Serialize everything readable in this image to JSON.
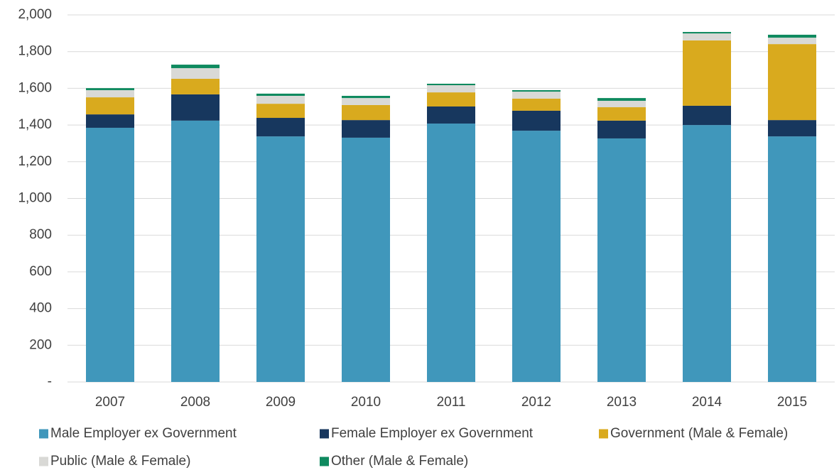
{
  "chart_data": {
    "type": "stacked_bar",
    "categories": [
      "2007",
      "2008",
      "2009",
      "2010",
      "2011",
      "2012",
      "2013",
      "2014",
      "2015"
    ],
    "series": [
      {
        "name": "Male Employer ex Government",
        "color": "#4097bb",
        "values": [
          1385,
          1424,
          1338,
          1331,
          1408,
          1369,
          1327,
          1400,
          1338
        ]
      },
      {
        "name": "Female Employer ex Government",
        "color": "#17375e",
        "values": [
          73,
          143,
          101,
          96,
          93,
          109,
          97,
          105,
          89
        ]
      },
      {
        "name": "Government (Male & Female)",
        "color": "#d9aa1e",
        "values": [
          93,
          85,
          77,
          82,
          77,
          66,
          73,
          356,
          414
        ]
      },
      {
        "name": "Public (Male & Female)",
        "color": "#d9d9d6",
        "values": [
          39,
          58,
          43,
          38,
          39,
          38,
          35,
          38,
          35
        ]
      },
      {
        "name": "Other (Male & Female)",
        "color": "#0f8a5f",
        "values": [
          11,
          19,
          12,
          12,
          8,
          8,
          15,
          8,
          16
        ]
      }
    ],
    "ylim": [
      0,
      2000
    ],
    "yticks": [
      {
        "value": 0,
        "label": "-"
      },
      200,
      400,
      600,
      800,
      {
        "value": 1000,
        "label": "1,000"
      },
      {
        "value": 1200,
        "label": "1,200"
      },
      {
        "value": 1400,
        "label": "1,400"
      },
      {
        "value": 1600,
        "label": "1,600"
      },
      {
        "value": 1800,
        "label": "1,800"
      },
      {
        "value": 2000,
        "label": "2,000"
      }
    ],
    "grid": true
  }
}
